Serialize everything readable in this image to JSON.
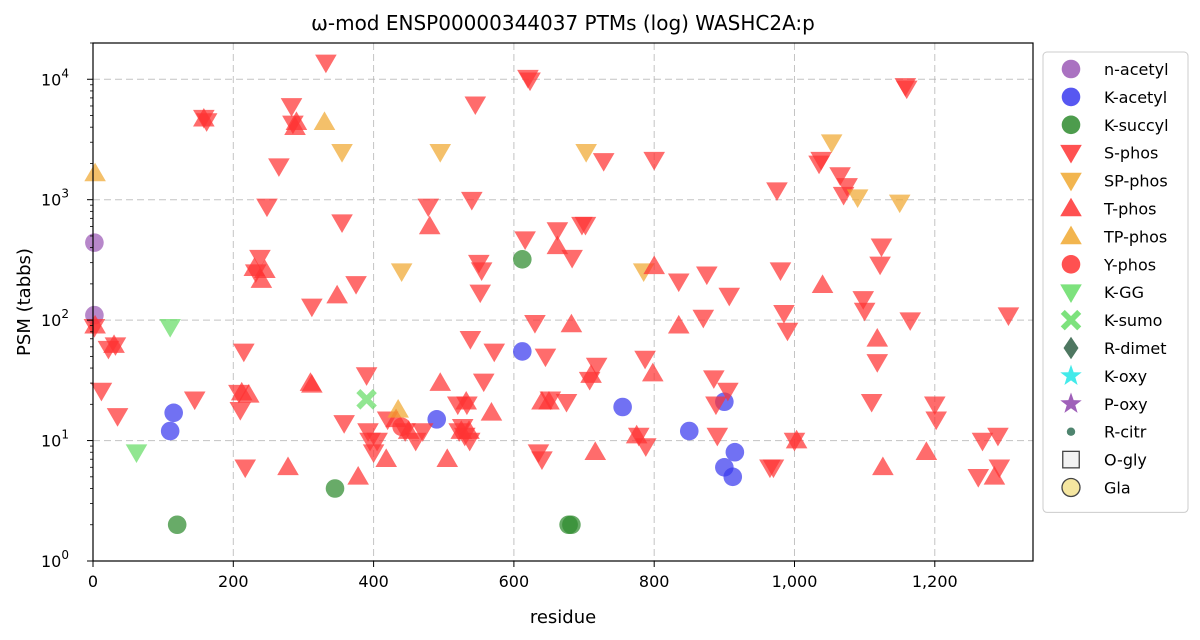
{
  "chart_data": {
    "type": "scatter",
    "title": "ω-mod ENSP00000344037 PTMs (log) WASHC2A:p",
    "xlabel": "residue",
    "ylabel": "PSM (tabbs)",
    "xlim": [
      0,
      1340
    ],
    "ylim": [
      1,
      20000
    ],
    "yscale": "log",
    "grid": true,
    "legend_position": "right",
    "x_ticks": [
      "0",
      "200",
      "400",
      "600",
      "800",
      "1,000",
      "1,200"
    ],
    "x_tick_values": [
      0,
      200,
      400,
      600,
      800,
      1000,
      1200
    ],
    "y_ticks": [
      {
        "base": "10",
        "exp": "0",
        "value": 1
      },
      {
        "base": "10",
        "exp": "1",
        "value": 10
      },
      {
        "base": "10",
        "exp": "2",
        "value": 100
      },
      {
        "base": "10",
        "exp": "3",
        "value": 1000
      },
      {
        "base": "10",
        "exp": "4",
        "value": 10000
      }
    ],
    "series": [
      {
        "name": "n-acetyl",
        "marker": "circle",
        "color": "#9b59b6",
        "points": [
          [
            2,
            440
          ],
          [
            2,
            110
          ]
        ]
      },
      {
        "name": "K-acetyl",
        "marker": "circle",
        "color": "#3a3aee",
        "points": [
          [
            110,
            12
          ],
          [
            115,
            17
          ],
          [
            490,
            15
          ],
          [
            612,
            55
          ],
          [
            755,
            19
          ],
          [
            850,
            12
          ],
          [
            900,
            21
          ],
          [
            900,
            6
          ],
          [
            912,
            5
          ],
          [
            915,
            8
          ]
        ]
      },
      {
        "name": "K-succyl",
        "marker": "circle",
        "color": "#2e8b2e",
        "points": [
          [
            120,
            2
          ],
          [
            345,
            4
          ],
          [
            612,
            320
          ],
          [
            678,
            2
          ],
          [
            682,
            2
          ]
        ]
      },
      {
        "name": "S-phos",
        "marker": "triangle-down",
        "color": "#ff3333",
        "points": [
          [
            2,
            88
          ],
          [
            12,
            26
          ],
          [
            22,
            58
          ],
          [
            32,
            62
          ],
          [
            35,
            16
          ],
          [
            158,
            4800
          ],
          [
            162,
            4500
          ],
          [
            145,
            22
          ],
          [
            208,
            25
          ],
          [
            210,
            18
          ],
          [
            215,
            55
          ],
          [
            217,
            6
          ],
          [
            238,
            330
          ],
          [
            232,
            250
          ],
          [
            248,
            880
          ],
          [
            265,
            1900
          ],
          [
            283,
            6000
          ],
          [
            285,
            4300
          ],
          [
            312,
            130
          ],
          [
            332,
            13800
          ],
          [
            355,
            650
          ],
          [
            358,
            14
          ],
          [
            375,
            200
          ],
          [
            390,
            35
          ],
          [
            392,
            12
          ],
          [
            395,
            10
          ],
          [
            400,
            8
          ],
          [
            405,
            10
          ],
          [
            420,
            15
          ],
          [
            445,
            12
          ],
          [
            460,
            10
          ],
          [
            470,
            12
          ],
          [
            478,
            880
          ],
          [
            520,
            20
          ],
          [
            522,
            12
          ],
          [
            527,
            13
          ],
          [
            530,
            11
          ],
          [
            533,
            20
          ],
          [
            537,
            10
          ],
          [
            538,
            70
          ],
          [
            540,
            1000
          ],
          [
            545,
            6200
          ],
          [
            550,
            300
          ],
          [
            552,
            170
          ],
          [
            554,
            260
          ],
          [
            557,
            31
          ],
          [
            572,
            55
          ],
          [
            616,
            470
          ],
          [
            620,
            10300
          ],
          [
            623,
            9800
          ],
          [
            630,
            95
          ],
          [
            635,
            8
          ],
          [
            640,
            7
          ],
          [
            645,
            50
          ],
          [
            652,
            22
          ],
          [
            662,
            560
          ],
          [
            675,
            21
          ],
          [
            683,
            330
          ],
          [
            697,
            620
          ],
          [
            702,
            620
          ],
          [
            708,
            32
          ],
          [
            718,
            42
          ],
          [
            728,
            2100
          ],
          [
            778,
            11
          ],
          [
            787,
            48
          ],
          [
            788,
            9
          ],
          [
            800,
            2150
          ],
          [
            835,
            210
          ],
          [
            870,
            105
          ],
          [
            875,
            240
          ],
          [
            885,
            33
          ],
          [
            888,
            20
          ],
          [
            890,
            11
          ],
          [
            905,
            26
          ],
          [
            907,
            160
          ],
          [
            965,
            6
          ],
          [
            970,
            6
          ],
          [
            975,
            1200
          ],
          [
            980,
            260
          ],
          [
            985,
            115
          ],
          [
            990,
            82
          ],
          [
            1000,
            10
          ],
          [
            1035,
            2000
          ],
          [
            1038,
            2150
          ],
          [
            1065,
            1600
          ],
          [
            1070,
            1100
          ],
          [
            1075,
            1300
          ],
          [
            1098,
            150
          ],
          [
            1100,
            120
          ],
          [
            1110,
            21
          ],
          [
            1118,
            45
          ],
          [
            1122,
            290
          ],
          [
            1124,
            410
          ],
          [
            1158,
            8800
          ],
          [
            1160,
            8400
          ],
          [
            1165,
            100
          ],
          [
            1200,
            20
          ],
          [
            1202,
            15
          ],
          [
            1262,
            5
          ],
          [
            1268,
            10
          ],
          [
            1290,
            11
          ],
          [
            1292,
            6
          ],
          [
            1305,
            110
          ]
        ]
      },
      {
        "name": "SP-phos",
        "marker": "triangle-down",
        "color": "#f0a830",
        "points": [
          [
            355,
            2500
          ],
          [
            440,
            255
          ],
          [
            495,
            2500
          ],
          [
            703,
            2500
          ],
          [
            785,
            255
          ],
          [
            1053,
            3000
          ],
          [
            1090,
            1050
          ],
          [
            1150,
            950
          ]
        ]
      },
      {
        "name": "T-phos",
        "marker": "triangle-up",
        "color": "#ff3333",
        "points": [
          [
            3,
            90
          ],
          [
            30,
            62
          ],
          [
            158,
            4700
          ],
          [
            212,
            25
          ],
          [
            222,
            24
          ],
          [
            230,
            270
          ],
          [
            240,
            215
          ],
          [
            245,
            260
          ],
          [
            278,
            6
          ],
          [
            288,
            4000
          ],
          [
            290,
            4400
          ],
          [
            310,
            30
          ],
          [
            312,
            29
          ],
          [
            348,
            160
          ],
          [
            378,
            5
          ],
          [
            418,
            7
          ],
          [
            432,
            15
          ],
          [
            450,
            12
          ],
          [
            480,
            600
          ],
          [
            495,
            30
          ],
          [
            505,
            7
          ],
          [
            525,
            12
          ],
          [
            532,
            21
          ],
          [
            536,
            12
          ],
          [
            568,
            17
          ],
          [
            640,
            21
          ],
          [
            650,
            21
          ],
          [
            662,
            410
          ],
          [
            682,
            92
          ],
          [
            710,
            35
          ],
          [
            716,
            8
          ],
          [
            775,
            11
          ],
          [
            798,
            36
          ],
          [
            800,
            280
          ],
          [
            835,
            90
          ],
          [
            1003,
            10
          ],
          [
            1040,
            195
          ],
          [
            1118,
            70
          ],
          [
            1126,
            6
          ],
          [
            1188,
            8
          ],
          [
            1285,
            5
          ]
        ]
      },
      {
        "name": "TP-phos",
        "marker": "triangle-up",
        "color": "#f0a830",
        "points": [
          [
            3,
            1650
          ],
          [
            330,
            4400
          ],
          [
            435,
            18
          ]
        ]
      },
      {
        "name": "Y-phos",
        "marker": "circle",
        "color": "#ff3333",
        "points": [
          [
            440,
            13
          ]
        ]
      },
      {
        "name": "K-GG",
        "marker": "triangle-down",
        "color": "#66dd66",
        "points": [
          [
            62,
            8
          ],
          [
            110,
            88
          ]
        ]
      },
      {
        "name": "K-sumo",
        "marker": "x",
        "color": "#66dd66",
        "points": [
          [
            390,
            22
          ]
        ]
      },
      {
        "name": "R-dimet",
        "marker": "diamond",
        "color": "#2f5f45",
        "points": []
      },
      {
        "name": "K-oxy",
        "marker": "star",
        "color": "#22e6e6",
        "points": []
      },
      {
        "name": "P-oxy",
        "marker": "star",
        "color": "#8e44ad",
        "points": []
      },
      {
        "name": "R-citr",
        "marker": "dot",
        "color": "#2f6f55",
        "points": []
      },
      {
        "name": "O-gly",
        "marker": "square-open",
        "color": "#f2f2f2",
        "points": []
      },
      {
        "name": "Gla",
        "marker": "circle-open",
        "color": "#f5e6a0",
        "points": []
      }
    ]
  }
}
